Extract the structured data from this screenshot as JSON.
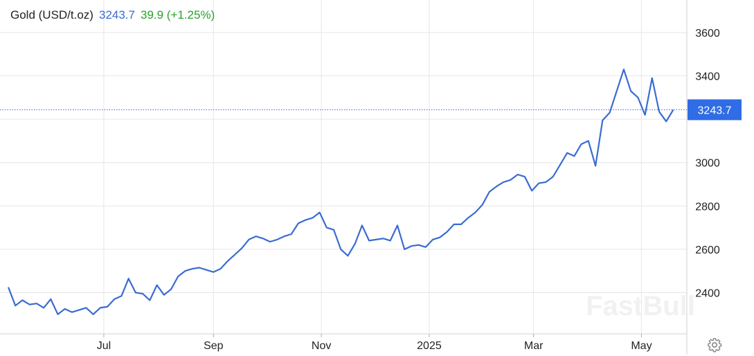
{
  "legend": {
    "instrument": "Gold (USD/t.oz)",
    "price": "3243.7",
    "change": "39.9 (+1.25%)"
  },
  "current_price_label": "3243.7",
  "watermark": "FastBull",
  "colors": {
    "line": "#3a6bd3",
    "price_tag_bg": "#2f6ce5",
    "change_up": "#2ca02c",
    "axis_text": "#222222",
    "grid": "#e6e6e6"
  },
  "icons": {
    "settings": "gear-icon"
  },
  "chart_data": {
    "type": "line",
    "title": "Gold (USD/t.oz)",
    "xlabel": "",
    "ylabel": "",
    "x_ticks": [
      "Jul",
      "Sep",
      "Nov",
      "2025",
      "Mar",
      "May"
    ],
    "y_ticks": [
      2400,
      2600,
      2800,
      3000,
      3200,
      3400,
      3600
    ],
    "y_tick_labels": [
      "2400",
      "2600",
      "2800",
      "3000",
      "",
      "3400",
      "3600"
    ],
    "ylim": [
      2210,
      3750
    ],
    "xlim": [
      "2024-05-08",
      "2025-05-20"
    ],
    "grid": true,
    "y_axis_position": "right",
    "last_price": 3243.7,
    "series": [
      {
        "x": [
          "2024-05-08",
          "2024-05-12",
          "2024-05-16",
          "2024-05-20",
          "2024-05-24",
          "2024-05-28",
          "2024-06-01",
          "2024-06-05",
          "2024-06-09",
          "2024-06-13",
          "2024-06-17",
          "2024-06-21",
          "2024-06-25",
          "2024-06-29",
          "2024-07-03",
          "2024-07-07",
          "2024-07-11",
          "2024-07-15",
          "2024-07-19",
          "2024-07-23",
          "2024-07-27",
          "2024-07-31",
          "2024-08-04",
          "2024-08-08",
          "2024-08-12",
          "2024-08-16",
          "2024-08-20",
          "2024-08-24",
          "2024-08-28",
          "2024-09-01",
          "2024-09-05",
          "2024-09-09",
          "2024-09-13",
          "2024-09-17",
          "2024-09-21",
          "2024-09-25",
          "2024-09-29",
          "2024-10-03",
          "2024-10-07",
          "2024-10-11",
          "2024-10-15",
          "2024-10-19",
          "2024-10-23",
          "2024-10-27",
          "2024-10-31",
          "2024-11-04",
          "2024-11-08",
          "2024-11-12",
          "2024-11-16",
          "2024-11-20",
          "2024-11-24",
          "2024-11-28",
          "2024-12-02",
          "2024-12-06",
          "2024-12-10",
          "2024-12-14",
          "2024-12-18",
          "2024-12-22",
          "2024-12-26",
          "2024-12-30",
          "2025-01-03",
          "2025-01-07",
          "2025-01-11",
          "2025-01-15",
          "2025-01-19",
          "2025-01-23",
          "2025-01-27",
          "2025-01-31",
          "2025-02-04",
          "2025-02-08",
          "2025-02-12",
          "2025-02-16",
          "2025-02-20",
          "2025-02-24",
          "2025-02-28",
          "2025-03-04",
          "2025-03-08",
          "2025-03-12",
          "2025-03-16",
          "2025-03-20",
          "2025-03-24",
          "2025-03-28",
          "2025-04-01",
          "2025-04-05",
          "2025-04-09",
          "2025-04-13",
          "2025-04-17",
          "2025-04-21",
          "2025-04-25",
          "2025-04-29",
          "2025-05-03",
          "2025-05-07",
          "2025-05-11",
          "2025-05-15",
          "2025-05-19"
        ],
        "y": [
          2425,
          2340,
          2365,
          2345,
          2350,
          2330,
          2370,
          2300,
          2325,
          2310,
          2320,
          2330,
          2300,
          2330,
          2335,
          2370,
          2385,
          2465,
          2400,
          2395,
          2365,
          2435,
          2390,
          2415,
          2475,
          2500,
          2510,
          2515,
          2505,
          2495,
          2510,
          2545,
          2575,
          2605,
          2645,
          2660,
          2650,
          2635,
          2645,
          2660,
          2670,
          2720,
          2735,
          2745,
          2770,
          2700,
          2690,
          2600,
          2570,
          2625,
          2710,
          2640,
          2645,
          2650,
          2640,
          2710,
          2600,
          2615,
          2620,
          2610,
          2645,
          2655,
          2680,
          2715,
          2715,
          2745,
          2770,
          2805,
          2865,
          2890,
          2910,
          2920,
          2945,
          2935,
          2870,
          2905,
          2910,
          2935,
          2990,
          3045,
          3030,
          3085,
          3100,
          2985,
          3195,
          3230,
          3330,
          3430,
          3330,
          3300,
          3220,
          3390,
          3235,
          3190,
          3243.7
        ]
      }
    ]
  }
}
